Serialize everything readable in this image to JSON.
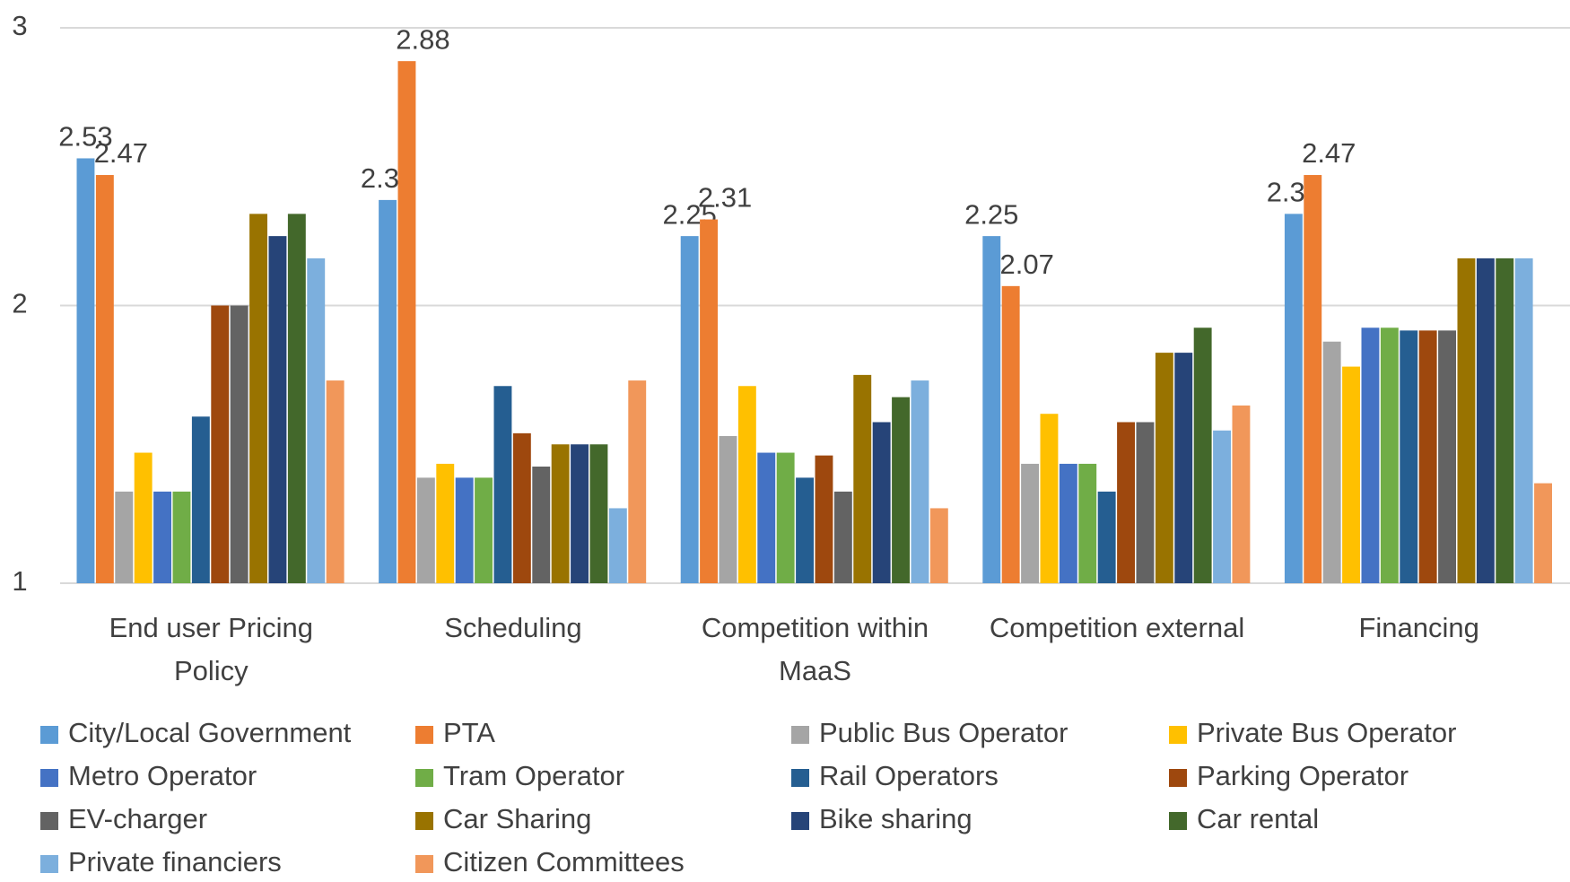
{
  "chart_data": {
    "type": "bar",
    "categories": [
      "End user Pricing Policy",
      "Scheduling",
      "Competition within MaaS",
      "Competition external",
      "Financing"
    ],
    "ylim": [
      1,
      3
    ],
    "yticks": [
      1,
      2,
      3
    ],
    "grid": true,
    "legend": "bottom",
    "series": [
      {
        "name": "City/Local Government",
        "color": "#5b9bd5",
        "values": [
          2.53,
          2.38,
          2.25,
          2.25,
          2.33
        ],
        "data_labels": true
      },
      {
        "name": "PTA",
        "color": "#ed7d31",
        "values": [
          2.47,
          2.88,
          2.31,
          2.07,
          2.47
        ],
        "data_labels": true
      },
      {
        "name": "Public Bus Operator",
        "color": "#a5a5a5",
        "values": [
          1.33,
          1.38,
          1.53,
          1.43,
          1.87
        ]
      },
      {
        "name": "Private Bus Operator",
        "color": "#ffc000",
        "values": [
          1.47,
          1.43,
          1.71,
          1.61,
          1.78
        ]
      },
      {
        "name": "Metro Operator",
        "color": "#4472c4",
        "values": [
          1.33,
          1.38,
          1.47,
          1.43,
          1.92
        ]
      },
      {
        "name": "Tram Operator",
        "color": "#70ad47",
        "values": [
          1.33,
          1.38,
          1.47,
          1.43,
          1.92
        ]
      },
      {
        "name": "Rail Operators",
        "color": "#255e91",
        "values": [
          1.6,
          1.71,
          1.38,
          1.33,
          1.91
        ]
      },
      {
        "name": "Parking Operator",
        "color": "#9e480e",
        "values": [
          2.0,
          1.54,
          1.46,
          1.58,
          1.91
        ]
      },
      {
        "name": "EV-charger",
        "color": "#636363",
        "values": [
          2.0,
          1.42,
          1.33,
          1.58,
          1.91
        ]
      },
      {
        "name": "Car Sharing",
        "color": "#997300",
        "values": [
          2.33,
          1.5,
          1.75,
          1.83,
          2.17
        ]
      },
      {
        "name": "Bike sharing",
        "color": "#264478",
        "values": [
          2.25,
          1.5,
          1.58,
          1.83,
          2.17
        ]
      },
      {
        "name": "Car rental",
        "color": "#43682b",
        "values": [
          2.33,
          1.5,
          1.67,
          1.92,
          2.17
        ]
      },
      {
        "name": "Private financiers",
        "color": "#7cafdd",
        "values": [
          2.17,
          1.27,
          1.73,
          1.55,
          2.17
        ]
      },
      {
        "name": "Citizen Committees",
        "color": "#f1975a",
        "values": [
          1.73,
          1.73,
          1.27,
          1.64,
          1.36
        ]
      }
    ]
  }
}
